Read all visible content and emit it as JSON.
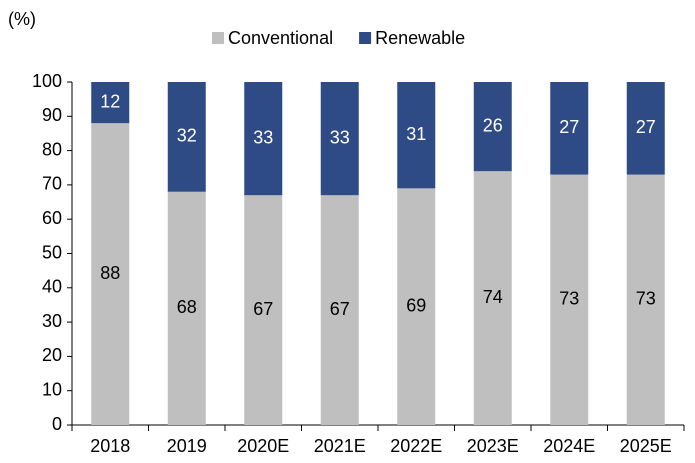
{
  "chart_data": {
    "type": "stacked_bar",
    "y_label": "(%)",
    "categories": [
      "2018",
      "2019",
      "2020E",
      "2021E",
      "2022E",
      "2023E",
      "2024E",
      "2025E"
    ],
    "series": [
      {
        "name": "Conventional",
        "color": "#bfbfbf",
        "label_color": "#000000",
        "values": [
          88,
          68,
          67,
          67,
          69,
          74,
          73,
          73
        ]
      },
      {
        "name": "Renewable",
        "color": "#2f4b85",
        "label_color": "#ffffff",
        "values": [
          12,
          32,
          33,
          33,
          31,
          26,
          27,
          27
        ]
      }
    ],
    "ylim": [
      0,
      100
    ],
    "yticks": [
      0,
      10,
      20,
      30,
      40,
      50,
      60,
      70,
      80,
      90,
      100
    ],
    "grid": false,
    "legend": "top"
  }
}
